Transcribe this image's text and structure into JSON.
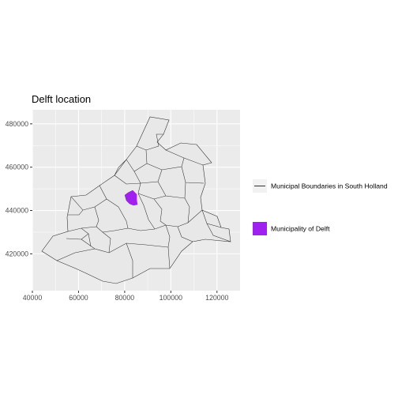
{
  "chart_data": {
    "type": "map",
    "title": "Delft location",
    "xlim": [
      40000,
      130000
    ],
    "ylim": [
      403000,
      486500
    ],
    "x_ticks": [
      40000,
      60000,
      80000,
      100000,
      120000
    ],
    "y_ticks": [
      420000,
      440000,
      460000,
      480000
    ],
    "x_tick_labels": [
      "40000",
      "60000",
      "80000",
      "100000",
      "120000"
    ],
    "y_tick_labels": [
      "420000",
      "440000",
      "460000",
      "480000"
    ],
    "grid": true,
    "legend_position": "right",
    "layers": [
      {
        "name": "Municipal Boundaries in South Holland",
        "fill": "#e8e8e8",
        "stroke": "#333333"
      },
      {
        "name": "Municipality of Delft",
        "fill": "#a020f0",
        "stroke": "#a020f0"
      }
    ],
    "colors": {
      "panel_background": "#ebebeb",
      "grid": "#ffffff",
      "boundary_fill": "#e8e8e8",
      "boundary_stroke": "#333333",
      "highlight": "#a020f0"
    }
  }
}
